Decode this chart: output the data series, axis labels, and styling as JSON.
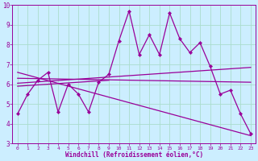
{
  "xlabel": "Windchill (Refroidissement éolien,°C)",
  "background_color": "#cceeff",
  "grid_color": "#aaddcc",
  "line_color": "#990099",
  "xlim": [
    -0.5,
    23.5
  ],
  "ylim": [
    3,
    10
  ],
  "xticks": [
    0,
    1,
    2,
    3,
    4,
    5,
    6,
    7,
    8,
    9,
    10,
    11,
    12,
    13,
    14,
    15,
    16,
    17,
    18,
    19,
    20,
    21,
    22,
    23
  ],
  "yticks": [
    3,
    4,
    5,
    6,
    7,
    8,
    9,
    10
  ],
  "series1_x": [
    0,
    1,
    2,
    3,
    4,
    5,
    6,
    7,
    8,
    9,
    10,
    11,
    12,
    13,
    14,
    15,
    16,
    17,
    18,
    19,
    20,
    21,
    22,
    23
  ],
  "series1_y": [
    4.5,
    5.5,
    6.2,
    6.6,
    4.6,
    6.0,
    5.5,
    4.6,
    6.1,
    6.5,
    8.2,
    9.7,
    7.5,
    8.5,
    7.5,
    9.6,
    8.3,
    7.6,
    8.1,
    6.9,
    5.5,
    5.7,
    4.5,
    3.5
  ],
  "trend1_x": [
    0,
    23
  ],
  "trend1_y": [
    6.05,
    6.85
  ],
  "trend2_x": [
    0,
    23
  ],
  "trend2_y": [
    6.6,
    3.4
  ],
  "trend3_x": [
    0,
    23
  ],
  "trend3_y": [
    6.3,
    6.1
  ],
  "trend4_x": [
    0,
    9
  ],
  "trend4_y": [
    5.9,
    6.2
  ]
}
